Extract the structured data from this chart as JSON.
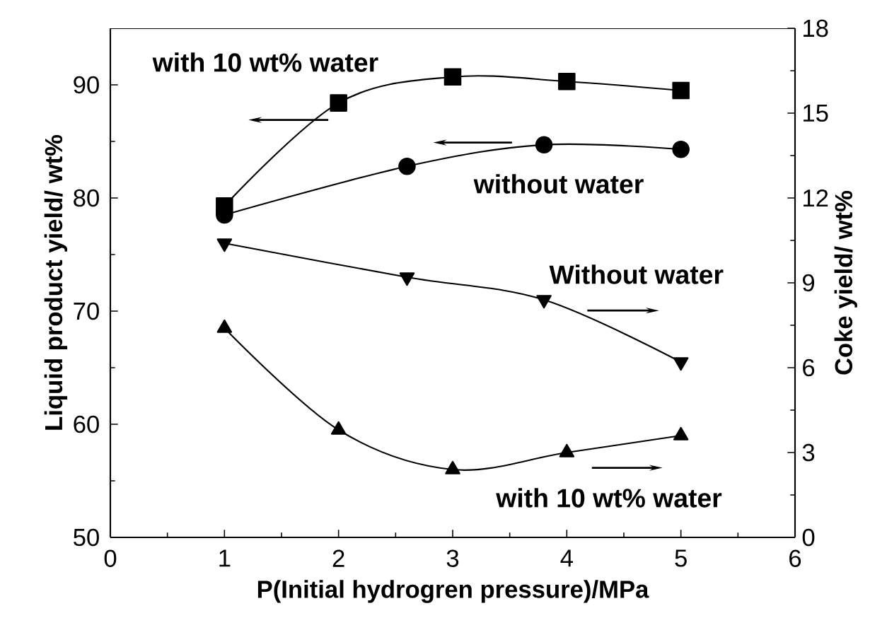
{
  "chart_data": {
    "type": "line",
    "xlabel": "P(Initial hydrogren pressure)/MPa",
    "ylabel": "Liquid product yield/ wt%",
    "y2label": "Coke yield/ wt%",
    "xlim": [
      0,
      6
    ],
    "xticks": [
      0,
      1,
      2,
      3,
      4,
      5,
      6
    ],
    "ylim": [
      50,
      95
    ],
    "yticks": [
      50,
      60,
      70,
      80,
      90
    ],
    "y2lim": [
      0,
      18
    ],
    "y2ticks": [
      0,
      3,
      6,
      9,
      12,
      15,
      18
    ],
    "line_style": "solid",
    "series": [
      {
        "color": "#000000",
        "marker": "square",
        "x": [
          1,
          2,
          3,
          4,
          5
        ],
        "values": [
          79.3,
          88.4,
          90.7,
          90.3,
          89.5
        ]
      },
      {
        "color": "#000000",
        "marker": "circle",
        "x": [
          1,
          2.6,
          3.8,
          5
        ],
        "values": [
          78.5,
          82.8,
          84.7,
          84.3
        ]
      },
      {
        "color": "#000000",
        "marker": "triangle_down",
        "axis": "y2",
        "x": [
          1,
          2.6,
          3.8,
          5
        ],
        "values": [
          10.4,
          9.2,
          8.4,
          6.2
        ]
      },
      {
        "color": "#000000",
        "marker": "triangle",
        "axis": "y2",
        "x": [
          1,
          2,
          3,
          4,
          5
        ],
        "values": [
          7.4,
          3.8,
          2.4,
          3.0,
          3.6
        ]
      }
    ],
    "annotations": [
      "with 10 wt% water",
      "without water",
      "Without water",
      "with 10 wt% water"
    ]
  }
}
